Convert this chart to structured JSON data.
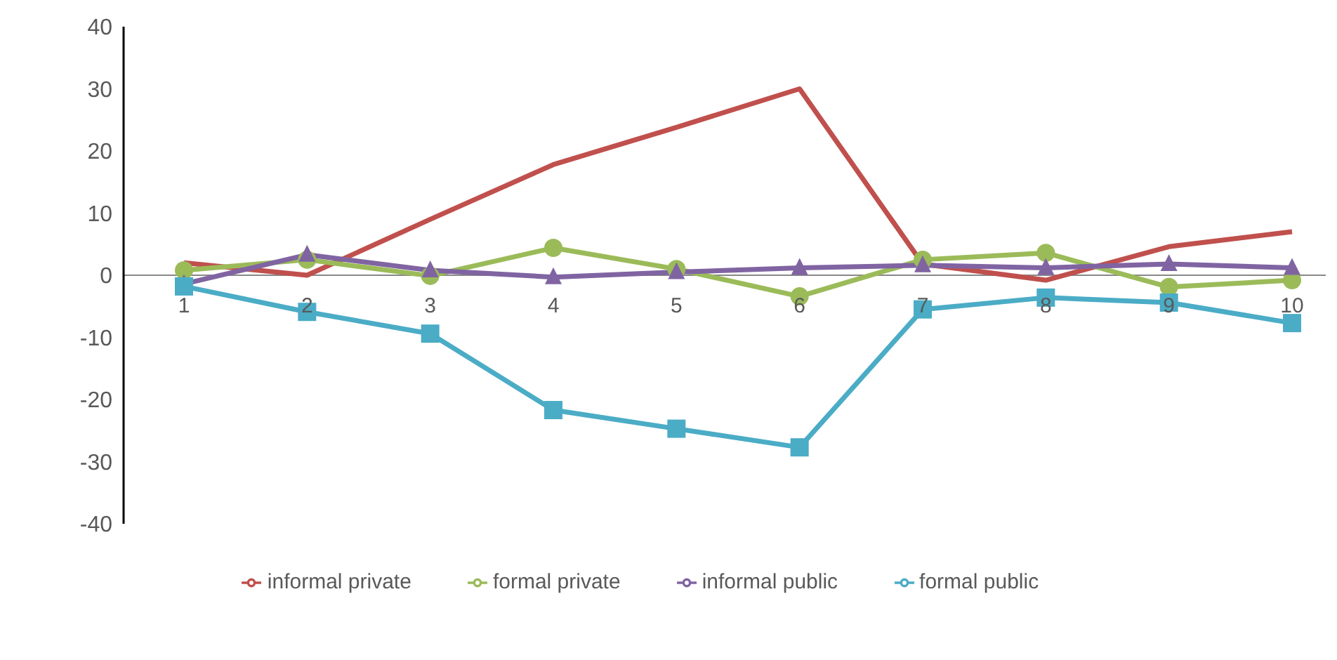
{
  "chart_data": {
    "type": "line",
    "categories": [
      "1",
      "2",
      "3",
      "4",
      "5",
      "6",
      "7",
      "8",
      "9",
      "10"
    ],
    "ylim": [
      -40,
      40
    ],
    "yticks": [
      -40,
      -30,
      -20,
      -10,
      0,
      10,
      20,
      30,
      40
    ],
    "grid": false,
    "legend": "bottom",
    "line_style": "solid",
    "series": [
      {
        "name": "informal private",
        "color": "#c0504d",
        "marker": "none",
        "values": [
          2,
          0,
          9,
          17.8,
          23.8,
          30,
          1.8,
          -0.8,
          4.6,
          7
        ]
      },
      {
        "name": "formal private",
        "color": "#9bbb59",
        "marker": "circle",
        "values": [
          0.8,
          2.5,
          -0.1,
          4.4,
          1,
          -3.4,
          2.5,
          3.6,
          -1.9,
          -0.8
        ]
      },
      {
        "name": "informal public",
        "color": "#8064a2",
        "marker": "triangle",
        "values": [
          -1.4,
          3.3,
          0.8,
          -0.3,
          0.5,
          1.2,
          1.6,
          1.2,
          1.8,
          1.2
        ]
      },
      {
        "name": "formal public",
        "color": "#4bacc6",
        "marker": "square",
        "values": [
          -1.8,
          -5.9,
          -9.4,
          -21.7,
          -24.7,
          -27.7,
          -5.5,
          -3.6,
          -4.4,
          -7.7
        ]
      }
    ]
  }
}
